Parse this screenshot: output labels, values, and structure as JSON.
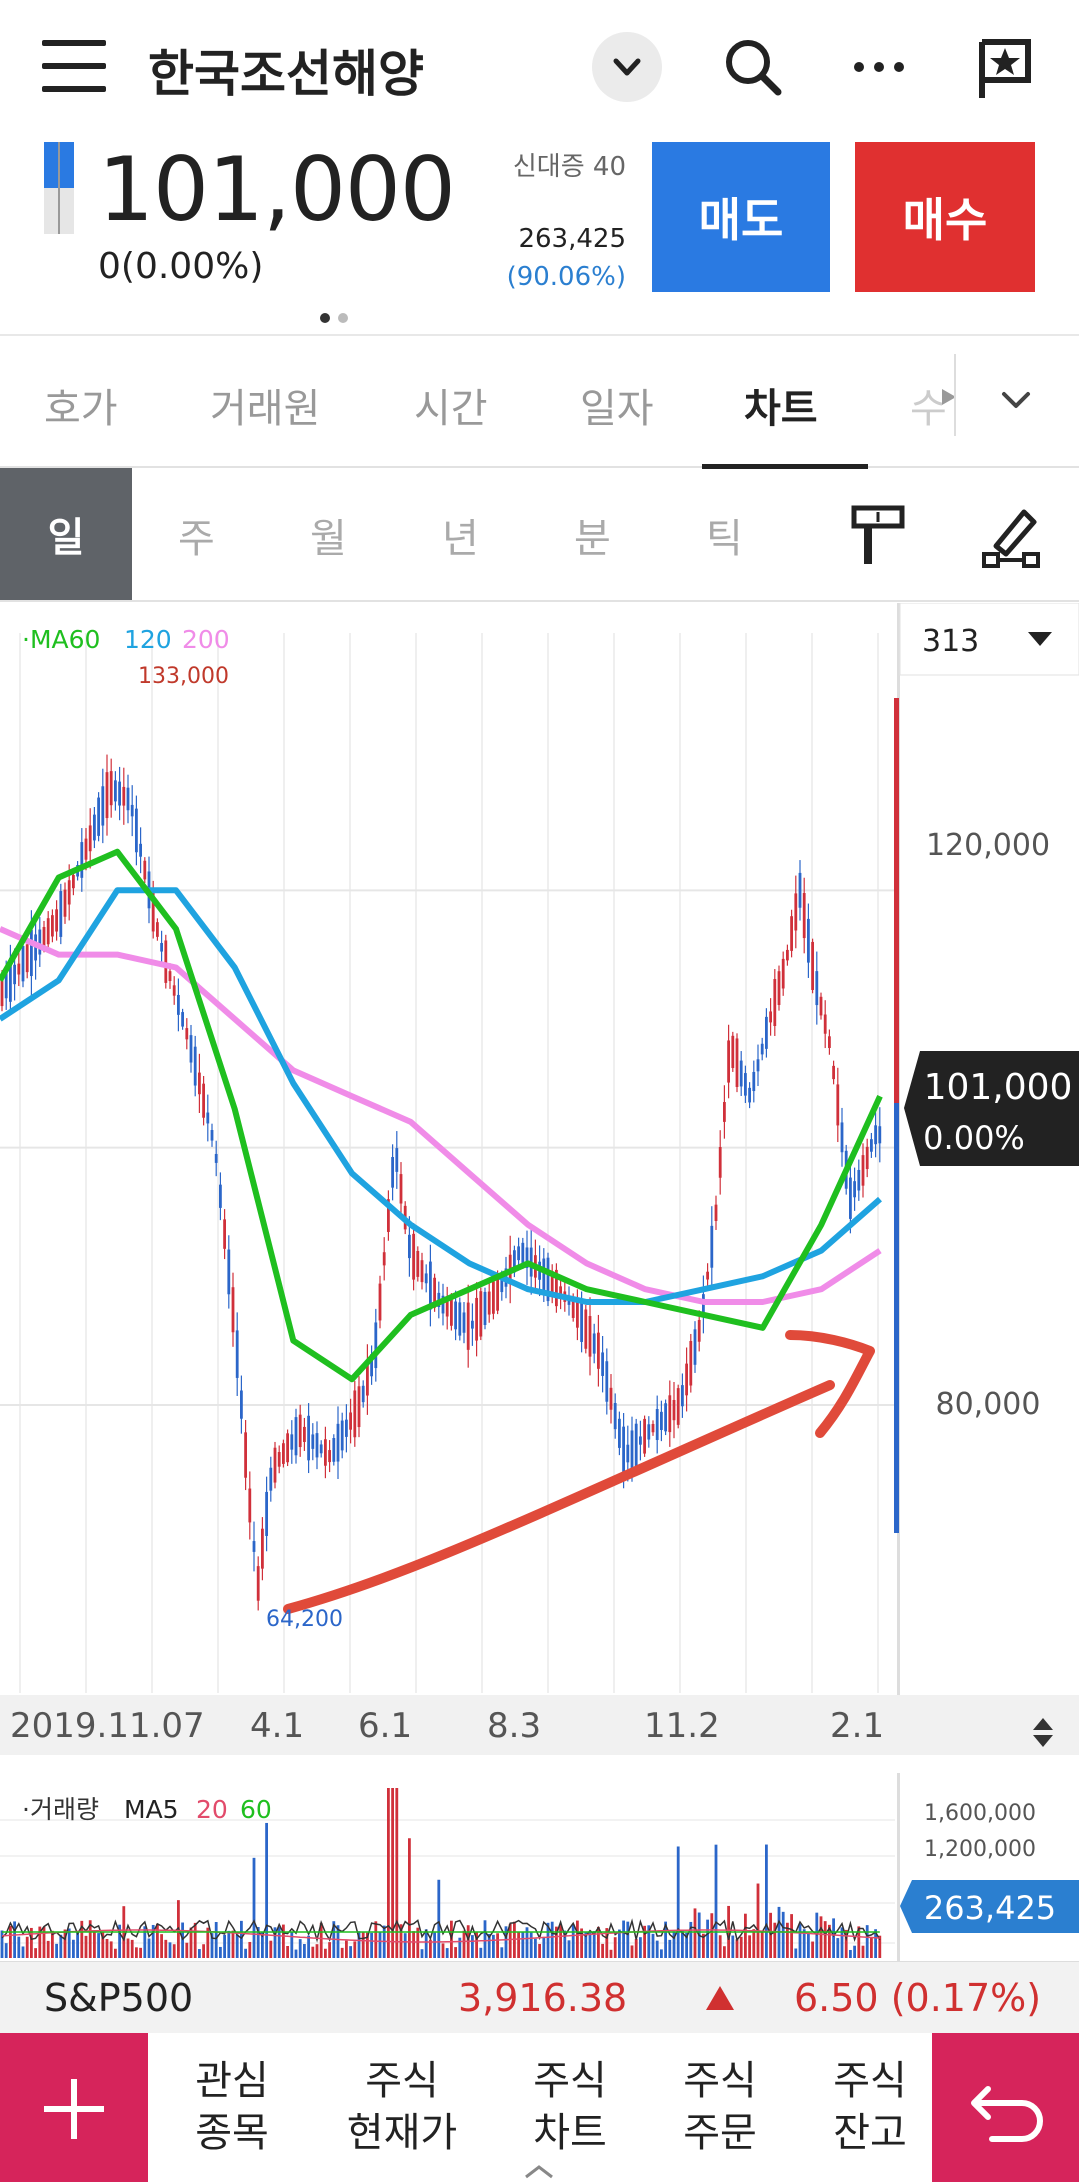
{
  "header": {
    "title": "한국조선해양",
    "icons": [
      "menu-icon",
      "chevron-down-icon",
      "search-icon",
      "more-icon",
      "flag-star-icon"
    ]
  },
  "quote": {
    "price": "101,000",
    "change": "0(0.00%)",
    "credit_label": "신대증 40",
    "volume": "263,425",
    "volume_pct": "(90.06%)",
    "sell_label": "매도",
    "buy_label": "매수"
  },
  "tabs": [
    {
      "label": "호가"
    },
    {
      "label": "거래원"
    },
    {
      "label": "시간"
    },
    {
      "label": "일자"
    },
    {
      "label": "차트"
    },
    {
      "label": "수"
    }
  ],
  "active_tab": "차트",
  "periods": [
    {
      "label": "일"
    },
    {
      "label": "주"
    },
    {
      "label": "월"
    },
    {
      "label": "년"
    },
    {
      "label": "분"
    },
    {
      "label": "틱"
    }
  ],
  "active_period": "일",
  "chart": {
    "count_select": "313",
    "legend_prefix": "·MA60",
    "legend_120": "120",
    "legend_200": "200",
    "high_label": "133,000",
    "low_label": "64,200",
    "y_ticks": [
      "120,000",
      "80,000"
    ],
    "current_price": "101,000",
    "current_pct": "0.00%",
    "x_ticks": [
      "2019.11.07",
      "4.1",
      "6.1",
      "8.3",
      "11.2",
      "2.1"
    ],
    "volume_legend_prefix": "·거래량",
    "volume_legend_ma5": "MA5",
    "volume_legend_20": "20",
    "volume_legend_60": "60",
    "volume_ticks": [
      "1,600,000",
      "1,200,000"
    ],
    "volume_current": "263,425",
    "colors": {
      "ma60": "#1fbf1f",
      "ma120": "#1fa3e0",
      "ma200": "#f08ce8",
      "up": "#d0303a",
      "down": "#2b66c9",
      "arrow": "#e04a3a"
    }
  },
  "chart_data": {
    "type": "line",
    "title": "",
    "series": [
      {
        "name": "MA60",
        "values": [
          113000,
          121000,
          123000,
          117000,
          103000,
          85000,
          82000,
          87000,
          89000,
          91000,
          89000,
          88000,
          87000,
          86000,
          94000,
          104000
        ]
      },
      {
        "name": "120",
        "values": [
          110000,
          113000,
          120000,
          120000,
          114000,
          105000,
          98000,
          94000,
          91000,
          89000,
          88000,
          88000,
          89000,
          90000,
          92000,
          96000
        ]
      },
      {
        "name": "200",
        "values": [
          117000,
          115000,
          115000,
          114000,
          110000,
          106000,
          104000,
          102000,
          98000,
          94000,
          91000,
          89000,
          88000,
          88000,
          89000,
          92000
        ]
      }
    ],
    "x_ticks": [
      "2019.11.07",
      "4.1",
      "6.1",
      "8.3",
      "11.2",
      "2.1"
    ],
    "y_ticks": [
      "120,000",
      "80,000"
    ],
    "high": "133,000",
    "low": "64,200",
    "last": "101,000"
  },
  "sp500": {
    "name": "S&P500",
    "value": "3,916.38",
    "change": "6.50 (0.17%)"
  },
  "nav": [
    {
      "line1": "관심",
      "line2": "종목"
    },
    {
      "line1": "주식",
      "line2": "현재가"
    },
    {
      "line1": "주식",
      "line2": "차트"
    },
    {
      "line1": "주식",
      "line2": "주문"
    },
    {
      "line1": "주식",
      "line2": "잔고"
    }
  ]
}
